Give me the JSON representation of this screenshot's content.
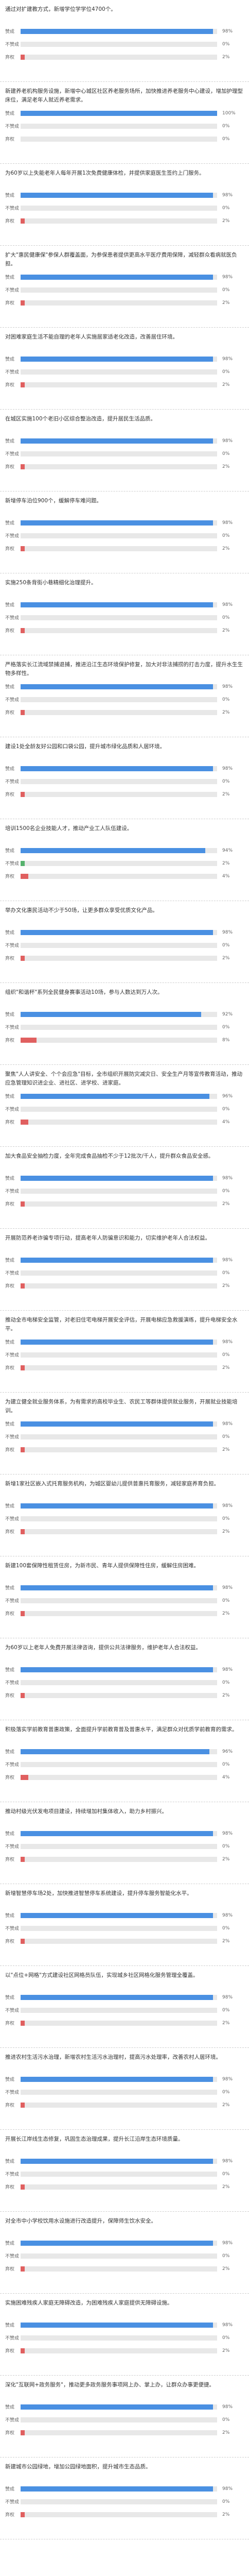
{
  "options": [
    "赞成",
    "不赞成",
    "弃权"
  ],
  "colors": {
    "support": "#4a90e2",
    "oppose": "#56b26d",
    "abstain": "#e06060",
    "track": "#e8e8e8"
  },
  "items": [
    {
      "question": "通过对扩建教方式，新增学位学学位4700个。",
      "results": [
        98,
        0,
        2
      ]
    },
    {
      "question": "新建养老机构服务设施，新增中心城区社区养老服务场所，加快推进养老服务中心建设，增加护理型床位，满足老年人就近养老需求。",
      "results": [
        100,
        0,
        0
      ]
    },
    {
      "question": "为60岁以上失能老年人每年开展1次免费健康体检，并提供家庭医生签约上门服务。",
      "results": [
        98,
        0,
        2
      ]
    },
    {
      "question": "扩大\"惠民健康保\"参保人群覆盖面，为参保患者提供更高水平医疗费用保障，减轻群众看病就医负担。",
      "results": [
        98,
        0,
        2
      ]
    },
    {
      "question": "对困难家庭生活不能自理的老年人实施居家适老化改造，改善居住环境。",
      "results": [
        98,
        0,
        2
      ]
    },
    {
      "question": "在城区实施100个老旧小区综合整治改造，提升居民生活品质。",
      "results": [
        98,
        0,
        2
      ]
    },
    {
      "question": "新增停车泊位900个，缓解停车难问题。",
      "results": [
        98,
        0,
        2
      ]
    },
    {
      "question": "实施250条背街小巷精细化治理提升。",
      "results": [
        98,
        0,
        2
      ]
    },
    {
      "question": "严格落实长江流域禁捕退捕，推进沿江生态环境保护修复，加大对非法捕捞的打击力度，提升水生生物多样性。",
      "results": [
        98,
        0,
        2
      ]
    },
    {
      "question": "建设1处全龄友好公园和口袋公园，提升城市绿化品质和人居环境。",
      "results": [
        98,
        0,
        2
      ]
    },
    {
      "question": "培训1500名企业技能人才，推动产业工人队伍建设。",
      "results": [
        94,
        2,
        4
      ]
    },
    {
      "question": "举办文化惠民活动不少于50场，让更多群众享受优质文化产品。",
      "results": [
        98,
        0,
        2
      ]
    },
    {
      "question": "组织\"和谐杯\"系列全民健身赛事活动10场，参与人数达到万人次。",
      "results": [
        92,
        0,
        8
      ]
    },
    {
      "question": "聚焦\"人人讲安全、个个会应急\"目标，全市组织开展防灾减灾日、安全生产月等宣传教育活动，推动应急管理知识进企业、进社区、进学校、进家庭。",
      "results": [
        96,
        0,
        4
      ]
    },
    {
      "question": "加大食品安全抽检力度，全年完成食品抽检不少于12批次/千人，提升群众食品安全感。",
      "results": [
        98,
        0,
        2
      ]
    },
    {
      "question": "开展防范养老诈骗专项行动，提高老年人防骗意识和能力，切实维护老年人合法权益。",
      "results": [
        98,
        0,
        2
      ]
    },
    {
      "question": "推动全市电梯安全监管，对老旧住宅电梯开展安全评估，开展电梯应急救援演练，提升电梯安全水平。",
      "results": [
        98,
        0,
        2
      ]
    },
    {
      "question": "为建立健全就业服务体系，为有需求的高校毕业生、农民工等群体提供就业服务，开展就业技能培训。",
      "results": [
        98,
        0,
        2
      ]
    },
    {
      "question": "新增1家社区嵌入式托育服务机构，为城区婴幼儿提供普惠托育服务，减轻家庭养育负担。",
      "results": [
        98,
        0,
        2
      ]
    },
    {
      "question": "新建100套保障性租赁住房，为新市民、青年人提供保障性住房，缓解住房困难。",
      "results": [
        98,
        0,
        2
      ]
    },
    {
      "question": "为60岁以上老年人免费开展法律咨询，提供公共法律服务，维护老年人合法权益。",
      "results": [
        98,
        0,
        2
      ]
    },
    {
      "question": "积极落实学前教育普惠政策，全面提升学前教育普及普惠水平，满足群众对优质学前教育的需求。",
      "results": [
        96,
        0,
        4
      ]
    },
    {
      "question": "推动村级光伏发电项目建设，持续增加村集体收入，助力乡村振兴。",
      "results": [
        98,
        0,
        2
      ]
    },
    {
      "question": "新增智慧停车场2处，加快推进智慧停车系统建设，提升停车服务智能化水平。",
      "results": [
        98,
        0,
        2
      ]
    },
    {
      "question": "以\"点位+网格\"方式建设社区网格员队伍，实现城乡社区网格化服务管理全覆盖。",
      "results": [
        98,
        0,
        2
      ]
    },
    {
      "question": "推进农村生活污水治理，新增农村生活污水治理村，提高污水处理率，改善农村人居环境。",
      "results": [
        98,
        0,
        2
      ]
    },
    {
      "question": "开展长江岸线生态修复，巩固生态治理成果，提升长江沿岸生态环境质量。",
      "results": [
        98,
        0,
        2
      ]
    },
    {
      "question": "对全市中小学校饮用水设施进行改造提升，保障师生饮水安全。",
      "results": [
        98,
        0,
        2
      ]
    },
    {
      "question": "实施困难残疾人家庭无障碍改造，为困难残疾人家庭提供无障碍设施。",
      "results": [
        98,
        0,
        2
      ]
    },
    {
      "question": "深化\"互联网+政务服务\"，推动更多政务服务事项网上办、掌上办，让群众办事更便捷。",
      "results": [
        98,
        0,
        2
      ]
    },
    {
      "question": "新建城市公园绿地，增加公园绿地面积，提升城市生态品质。",
      "results": [
        98,
        0,
        2
      ]
    }
  ]
}
